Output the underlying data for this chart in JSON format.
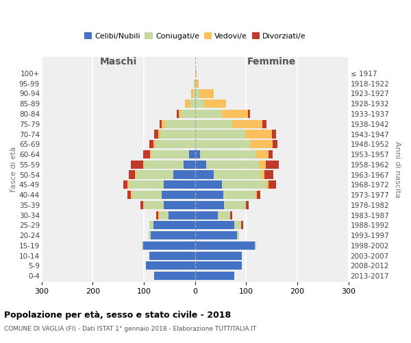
{
  "age_groups": [
    "100+",
    "95-99",
    "90-94",
    "85-89",
    "80-84",
    "75-79",
    "70-74",
    "65-69",
    "60-64",
    "55-59",
    "50-54",
    "45-49",
    "40-44",
    "35-39",
    "30-34",
    "25-29",
    "20-24",
    "15-19",
    "10-14",
    "5-9",
    "0-4"
  ],
  "birth_years": [
    "≤ 1917",
    "1918-1922",
    "1923-1927",
    "1928-1932",
    "1933-1937",
    "1938-1942",
    "1943-1947",
    "1948-1952",
    "1953-1957",
    "1958-1962",
    "1963-1967",
    "1968-1972",
    "1973-1977",
    "1978-1982",
    "1983-1987",
    "1988-1992",
    "1993-1997",
    "1998-2002",
    "2003-2007",
    "2008-2012",
    "2013-2017"
  ],
  "male_celibi": [
    0,
    0,
    0,
    0,
    0,
    0,
    0,
    0,
    12,
    22,
    42,
    62,
    65,
    62,
    52,
    82,
    87,
    102,
    90,
    96,
    80
  ],
  "male_coniugati": [
    0,
    2,
    4,
    10,
    28,
    58,
    68,
    78,
    73,
    78,
    73,
    68,
    58,
    38,
    18,
    8,
    4,
    2,
    0,
    0,
    0
  ],
  "male_vedovi": [
    0,
    0,
    4,
    10,
    4,
    8,
    4,
    4,
    3,
    2,
    2,
    2,
    2,
    2,
    2,
    0,
    0,
    0,
    0,
    0,
    0
  ],
  "male_divorziati": [
    0,
    0,
    0,
    0,
    4,
    4,
    8,
    8,
    14,
    24,
    12,
    8,
    7,
    5,
    4,
    0,
    0,
    0,
    0,
    0,
    0
  ],
  "female_celibi": [
    0,
    0,
    0,
    0,
    0,
    0,
    0,
    0,
    10,
    22,
    36,
    52,
    55,
    57,
    45,
    77,
    82,
    117,
    92,
    92,
    76
  ],
  "female_coniugati": [
    0,
    2,
    8,
    18,
    52,
    73,
    98,
    108,
    110,
    103,
    93,
    88,
    63,
    43,
    23,
    13,
    4,
    2,
    0,
    0,
    0
  ],
  "female_vedovi": [
    3,
    5,
    28,
    43,
    52,
    58,
    52,
    43,
    23,
    13,
    7,
    4,
    3,
    0,
    0,
    0,
    0,
    0,
    0,
    0,
    0
  ],
  "female_divorziati": [
    0,
    0,
    0,
    0,
    4,
    8,
    8,
    10,
    8,
    26,
    17,
    14,
    7,
    5,
    5,
    4,
    0,
    0,
    0,
    0,
    0
  ],
  "color_celibi": "#4472c4",
  "color_coniugati": "#c5d9a0",
  "color_vedovi": "#fac05e",
  "color_divorziati": "#c0392b",
  "title": "Popolazione per età, sesso e stato civile - 2018",
  "subtitle": "COMUNE DI VAGLIA (FI) - Dati ISTAT 1° gennaio 2018 - Elaborazione TUTTITALIA.IT",
  "xlabel_left": "Maschi",
  "xlabel_right": "Femmine",
  "ylabel_left": "Fasce di età",
  "ylabel_right": "Anni di nascita",
  "xmin": -300,
  "xmax": 300,
  "bg_color": "#efefef",
  "grid_color": "#dddddd"
}
